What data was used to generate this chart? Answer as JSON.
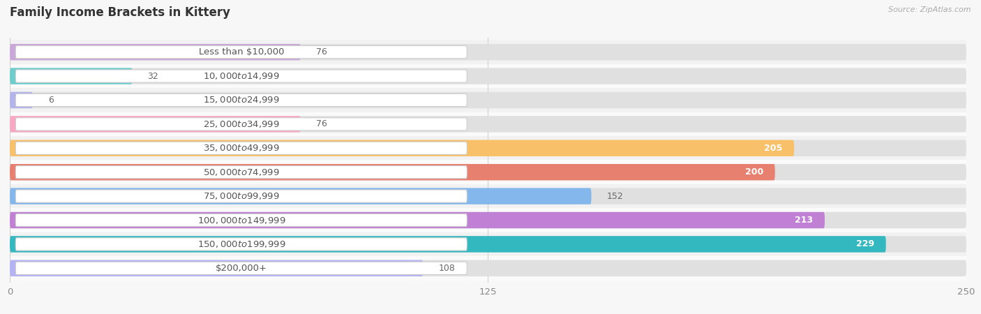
{
  "title": "Family Income Brackets in Kittery",
  "source": "Source: ZipAtlas.com",
  "categories": [
    "Less than $10,000",
    "$10,000 to $14,999",
    "$15,000 to $24,999",
    "$25,000 to $34,999",
    "$35,000 to $49,999",
    "$50,000 to $74,999",
    "$75,000 to $99,999",
    "$100,000 to $149,999",
    "$150,000 to $199,999",
    "$200,000+"
  ],
  "values": [
    76,
    32,
    6,
    76,
    205,
    200,
    152,
    213,
    229,
    108
  ],
  "colors": [
    "#c9a8d9",
    "#6ecece",
    "#b4b4ec",
    "#f9a8c4",
    "#f9c06a",
    "#e88070",
    "#84b8ec",
    "#c080d4",
    "#34b8c0",
    "#b4b4f4"
  ],
  "row_bg_colors": [
    "#f0f0f0",
    "#fafafa",
    "#f0f0f0",
    "#fafafa",
    "#f0f0f0",
    "#fafafa",
    "#f0f0f0",
    "#fafafa",
    "#f0f0f0",
    "#fafafa"
  ],
  "xlim": [
    0,
    250
  ],
  "xticks": [
    0,
    125,
    250
  ],
  "background_color": "#f7f7f7",
  "title_fontsize": 12,
  "label_fontsize": 9.5,
  "value_fontsize": 9
}
